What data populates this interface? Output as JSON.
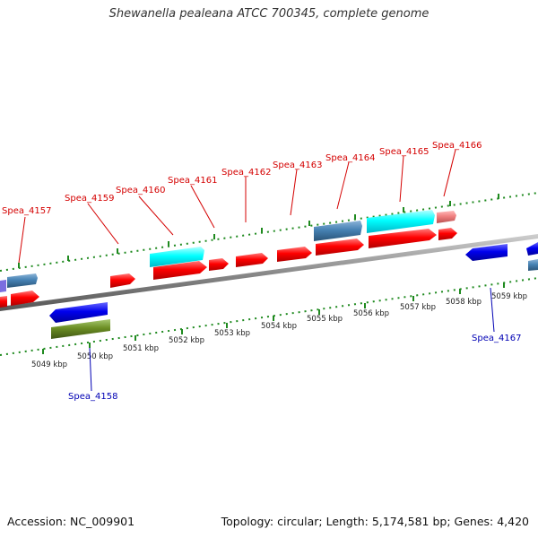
{
  "title": "Shewanella pealeana ATCC 700345, complete genome",
  "footer": {
    "accession": "Accession: NC_009901",
    "summary": "Topology: circular; Length: 5,174,581 bp; Genes: 4,420"
  },
  "colors": {
    "forward_label": "#d40000",
    "reverse_label": "#0000b4",
    "ticks": "#1f8a1f",
    "cds_forward": "#ff0000",
    "cds_reverse": "#0000ee",
    "rna": "#00ffff",
    "steel": "#4682b4",
    "olive": "#6b8e23",
    "pink": "#f08080",
    "backbone": "#888888"
  },
  "ticks": [
    {
      "label": "5049 kbp"
    },
    {
      "label": "5050 kbp"
    },
    {
      "label": "5051 kbp"
    },
    {
      "label": "5052 kbp"
    },
    {
      "label": "5053 kbp"
    },
    {
      "label": "5054 kbp"
    },
    {
      "label": "5055 kbp"
    },
    {
      "label": "5056 kbp"
    },
    {
      "label": "5057 kbp"
    },
    {
      "label": "5058 kbp"
    },
    {
      "label": "5059 kbp"
    }
  ],
  "gene_labels": {
    "forward": [
      "Spea_4157",
      "Spea_4159",
      "Spea_4160",
      "Spea_4161",
      "Spea_4162",
      "Spea_4163",
      "Spea_4164",
      "Spea_4165",
      "Spea_4166"
    ],
    "reverse": [
      "Spea_4158",
      "Spea_4167"
    ]
  }
}
